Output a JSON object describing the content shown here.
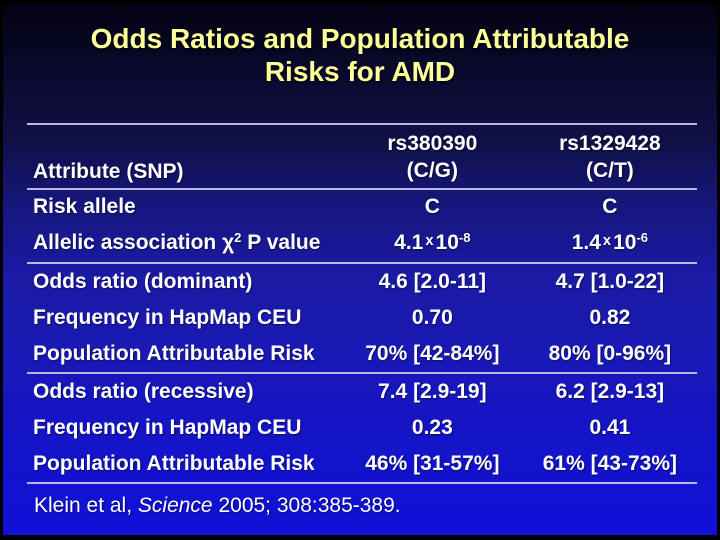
{
  "slide": {
    "title_line1": "Odds Ratios and Population Attributable",
    "title_line2": "Risks for AMD"
  },
  "colors": {
    "title_yellow": "#ffff99",
    "background_top": "#030211",
    "background_bottom": "#1010d8",
    "table_line": "#b9b9e2",
    "text": "#ffffff",
    "frame": "#000000"
  },
  "table": {
    "header": {
      "attribute": "Attribute (SNP)",
      "col2": {
        "line1": "rs380390",
        "line2": "(C/G)"
      },
      "col3": {
        "line1": "rs1329428",
        "line2": "(C/T)"
      }
    },
    "groups": [
      [
        {
          "size": "short",
          "label": "Risk allele",
          "v1": "C",
          "v2": "C"
        },
        {
          "size": "tall",
          "label": [
            {
              "t": "Allelic association χ"
            },
            {
              "t": "2",
              "s": "sup"
            },
            {
              "t": " P value"
            }
          ],
          "v1": [
            {
              "t": "4.1"
            },
            {
              "t": "x",
              "s": "mult"
            },
            {
              "t": "10"
            },
            {
              "t": "-8",
              "s": "sup"
            }
          ],
          "v2": [
            {
              "t": "1.4"
            },
            {
              "t": "x",
              "s": "mult"
            },
            {
              "t": "10"
            },
            {
              "t": "-6",
              "s": "sup"
            }
          ]
        }
      ],
      [
        {
          "label": "Odds ratio (dominant)",
          "v1": "4.6 [2.0-11]",
          "v2": "4.7 [1.0-22]"
        },
        {
          "label": "Frequency in HapMap CEU",
          "v1": "0.70",
          "v2": "0.82"
        },
        {
          "label": "Population Attributable Risk",
          "v1": "70% [42-84%]",
          "v2": "80% [0-96%]"
        }
      ],
      [
        {
          "label": "Odds ratio (recessive)",
          "v1": "7.4 [2.9-19]",
          "v2": "6.2 [2.9-13]"
        },
        {
          "label": "Frequency in HapMap CEU",
          "v1": "0.23",
          "v2": "0.41"
        },
        {
          "label": "Population Attributable Risk",
          "v1": "46% [31-57%]",
          "v2": "61% [43-73%]"
        }
      ]
    ]
  },
  "citation": {
    "parts": [
      {
        "t": "Klein et al, "
      },
      {
        "t": "Science",
        "s": "i"
      },
      {
        "t": " 2005; 308:385-389."
      }
    ]
  }
}
